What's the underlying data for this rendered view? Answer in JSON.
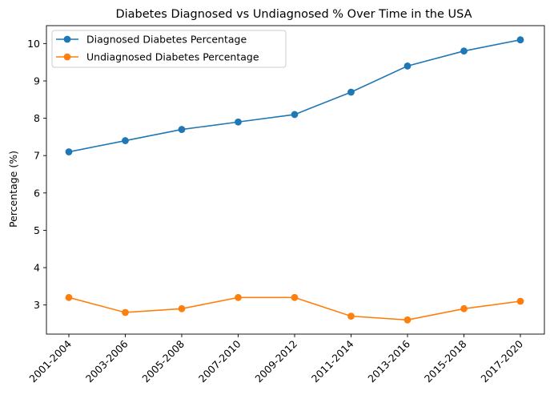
{
  "chart_data": {
    "type": "line",
    "title": "Diabetes Diagnosed vs Undiagnosed % Over Time in the USA",
    "xlabel": "",
    "ylabel": "Percentage (%)",
    "categories": [
      "2001-2004",
      "2003-2006",
      "2005-2008",
      "2007-2010",
      "2009-2012",
      "2011-2014",
      "2013-2016",
      "2015-2018",
      "2017-2020"
    ],
    "series": [
      {
        "name": "Diagnosed Diabetes Percentage",
        "values": [
          7.1,
          7.4,
          7.7,
          7.9,
          8.1,
          8.7,
          9.4,
          9.8,
          10.1
        ],
        "color": "#1f77b4"
      },
      {
        "name": "Undiagnosed Diabetes Percentage",
        "values": [
          3.2,
          2.8,
          2.9,
          3.2,
          3.2,
          2.7,
          2.6,
          2.9,
          3.1
        ],
        "color": "#ff7f0e"
      }
    ],
    "ylim": [
      2.22,
      10.48
    ],
    "yticks": [
      3,
      4,
      5,
      6,
      7,
      8,
      9,
      10
    ],
    "grid": false,
    "legend_position": "top-left",
    "marker": "circle"
  }
}
